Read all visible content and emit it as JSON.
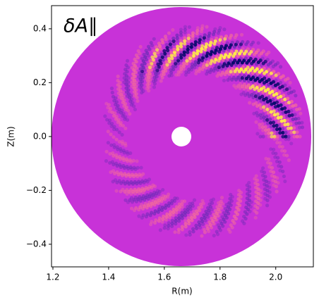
{
  "chart_data": {
    "type": "image",
    "annotation": "δA∥",
    "xlabel": "R(m)",
    "ylabel": "Z(m)",
    "xlim": [
      1.195,
      2.135
    ],
    "ylim": [
      -0.484,
      0.486
    ],
    "xticks": [
      1.2,
      1.4,
      1.6,
      1.8,
      {
        "value": 2,
        "label": "2.0"
      }
    ],
    "yticks": [
      {
        "value": -0.4,
        "label": "−0.4"
      },
      {
        "value": -0.2,
        "label": "−0.2"
      },
      {
        "value": 0,
        "label": "0.0"
      },
      0.2,
      0.4
    ]
  }
}
